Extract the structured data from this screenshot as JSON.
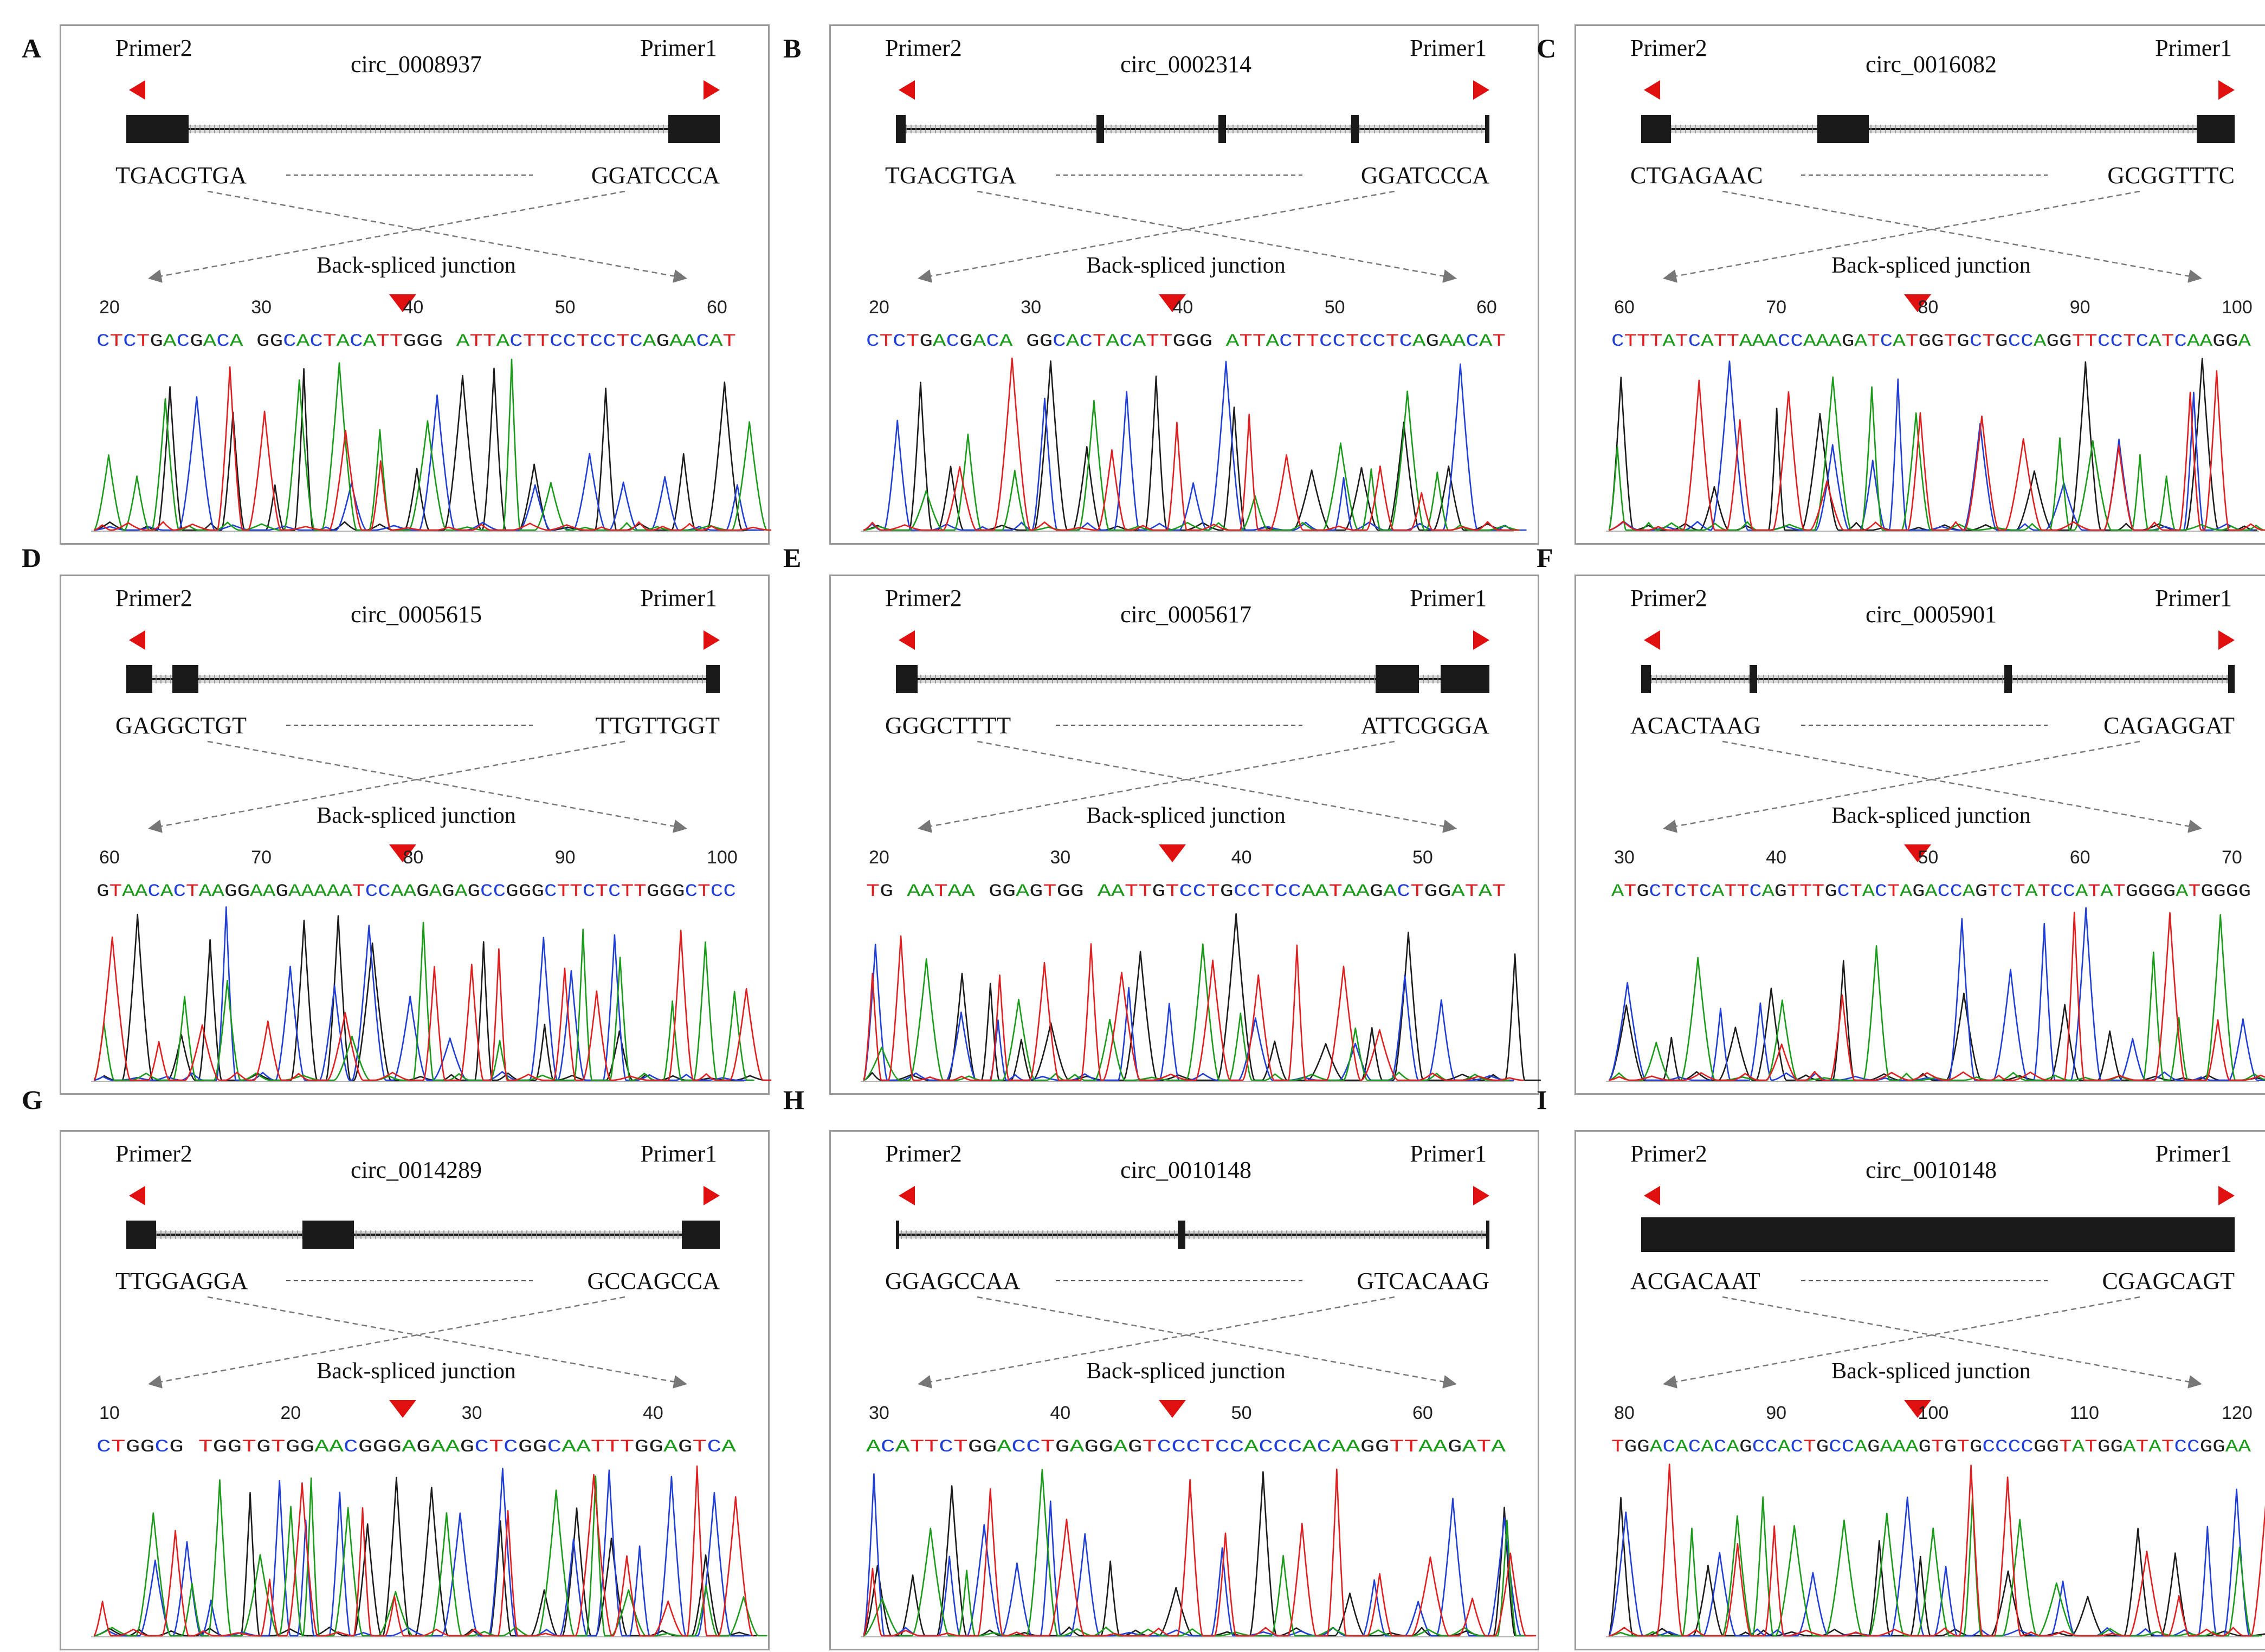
{
  "figure": {
    "primer_left": "Primer2",
    "primer_right": "Primer1",
    "junction_label": "Back-spliced junction",
    "base_colors": {
      "A": "#1a9b1a",
      "C": "#1f3fd6",
      "G": "#1c1c1c",
      "T": "#e02020"
    },
    "marker_color": "#e01010",
    "panels": [
      {
        "letter": "A",
        "circ": "circ_0008937",
        "seq_left": "TGACGTGA",
        "seq_right": "GGATCCCA",
        "exons": "thick-thick",
        "ticks": [
          "20",
          "30",
          "40",
          "50",
          "60"
        ],
        "sequence": "CTCTGACGACA GGCACTACATTGGG ATTACTTCCTCCTCAGAACAT"
      },
      {
        "letter": "B",
        "circ": "circ_0002314",
        "seq_left": "TGACGTGA",
        "seq_right": "GGATCCCA",
        "exons": "thin-multi",
        "ticks": [
          "20",
          "30",
          "40",
          "50",
          "60"
        ],
        "sequence": "CTCTGACGACA GGCACTACATTGGG ATTACTTCCTCCTCAGAACAT"
      },
      {
        "letter": "C",
        "circ": "circ_0016082",
        "seq_left": "CTGAGAAC",
        "seq_right": "GCGGTTTC",
        "exons": "three-thick",
        "ticks": [
          "60",
          "70",
          "80",
          "90",
          "100"
        ],
        "sequence": "CTTTATCATTAAACCAAAGATCATGGTGCTGCCAGGTTCCTCATCAAGGA"
      },
      {
        "letter": "D",
        "circ": "circ_0005615",
        "seq_left": "GAGGCTGT",
        "seq_right": "TTGTTGGT",
        "exons": "two-left",
        "ticks": [
          "60",
          "70",
          "80",
          "90",
          "100"
        ],
        "sequence": "GTAACACTAAGGAAGAAAAATCCAAGAGAGCCGGGCTTCTCTTGGGCTCC"
      },
      {
        "letter": "E",
        "circ": "circ_0005617",
        "seq_left": "GGGCTTTT",
        "seq_right": "ATTCGGGA",
        "exons": "two-right",
        "ticks": [
          "20",
          "30",
          "40",
          "50"
        ],
        "sequence": "TG AATAA GGAGTGG AATTGTCCTGCCTCCAATAAGACTGGATAT"
      },
      {
        "letter": "F",
        "circ": "circ_0005901",
        "seq_left": "ACACTAAG",
        "seq_right": "CAGAGGAT",
        "exons": "thin-four",
        "ticks": [
          "30",
          "40",
          "50",
          "60",
          "70"
        ],
        "sequence": "ATGCTCTCATTCAGTTTGCTACTAGACCAGTCTATCCATATGGGGATGGGG"
      },
      {
        "letter": "G",
        "circ": "circ_0014289",
        "seq_left": "TTGGAGGA",
        "seq_right": "GCCAGCCA",
        "exons": "three-thick",
        "ticks": [
          "10",
          "20",
          "30",
          "40"
        ],
        "sequence": "CTGGCG TGGTGTGGAACGGGAGAAGCTCGGCAATTTGGAGTCA"
      },
      {
        "letter": "H",
        "circ": "circ_0010148",
        "seq_left": "GGAGCCAA",
        "seq_right": "GTCACAAG",
        "exons": "thin-middle",
        "ticks": [
          "30",
          "40",
          "50",
          "60"
        ],
        "sequence": "ACATTCTGGACCTGAGGAGTCCCTCCACCCACAAGGTTAAGATA"
      },
      {
        "letter": "I",
        "circ": "circ_0010148",
        "seq_left": "ACGACAAT",
        "seq_right": "CGAGCAGT",
        "exons": "solid",
        "ticks": [
          "80",
          "90",
          "100",
          "110",
          "120"
        ],
        "sequence": "TGGACACACAGCCACTGCCAGAAAGTGTGCCCCGGTATGGATATCCGGAA"
      }
    ]
  }
}
